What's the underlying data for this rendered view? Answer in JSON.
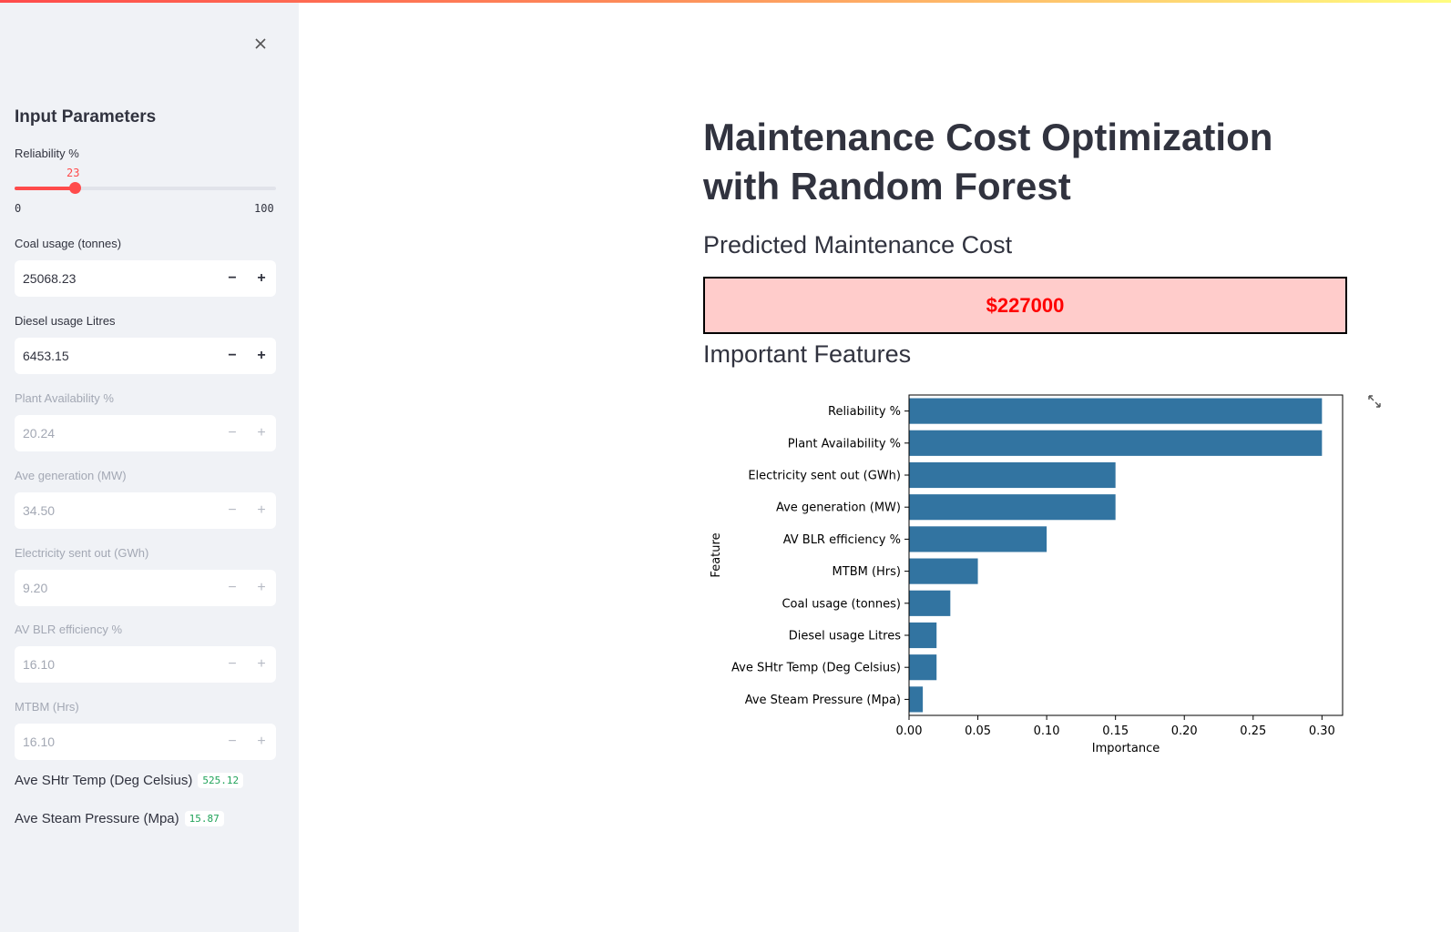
{
  "sidebar": {
    "title": "Input Parameters",
    "reliability": {
      "label": "Reliability %",
      "value": "23",
      "min": "0",
      "max": "100",
      "fraction": 0.23
    },
    "coal": {
      "label": "Coal usage (tonnes)",
      "value": "25068.23"
    },
    "diesel": {
      "label": "Diesel usage Litres",
      "value": "6453.15"
    },
    "plant_availability": {
      "label": "Plant Availability %",
      "value": "20.24"
    },
    "ave_generation": {
      "label": "Ave generation (MW)",
      "value": "34.50"
    },
    "electricity": {
      "label": "Electricity sent out (GWh)",
      "value": "9.20"
    },
    "av_blr": {
      "label": "AV BLR efficiency %",
      "value": "16.10"
    },
    "mtbm": {
      "label": "MTBM (Hrs)",
      "value": "16.10"
    },
    "shtr_temp": {
      "label": "Ave SHtr Temp (Deg Celsius)",
      "value": "525.12"
    },
    "steam_pressure": {
      "label": "Ave Steam Pressure (Mpa)",
      "value": "15.87"
    },
    "minus": "−",
    "plus": "+"
  },
  "main": {
    "title": "Maintenance Cost Optimization with Random Forest",
    "predicted_heading": "Predicted Maintenance Cost",
    "predicted_value": "$227000",
    "features_heading": "Important Features"
  },
  "colors": {
    "accent": "#ff4b4b",
    "bar": "#3274a1",
    "box_bg": "#ffcccb",
    "cost_text": "#ff0000"
  },
  "chart_data": {
    "type": "bar",
    "orientation": "horizontal",
    "categories": [
      "Reliability %",
      "Plant Availability %",
      "Electricity sent out (GWh)",
      "Ave generation (MW)",
      "AV BLR efficiency %",
      "MTBM (Hrs)",
      "Coal usage (tonnes)",
      "Diesel usage Litres",
      "Ave SHtr Temp (Deg Celsius)",
      "Ave Steam Pressure (Mpa)"
    ],
    "values": [
      0.3,
      0.3,
      0.15,
      0.15,
      0.1,
      0.05,
      0.03,
      0.02,
      0.02,
      0.01
    ],
    "xlabel": "Importance",
    "ylabel": "Feature",
    "xlim": [
      0,
      0.315
    ],
    "xticks": [
      "0.00",
      "0.05",
      "0.10",
      "0.15",
      "0.20",
      "0.25",
      "0.30"
    ],
    "grid": false
  }
}
